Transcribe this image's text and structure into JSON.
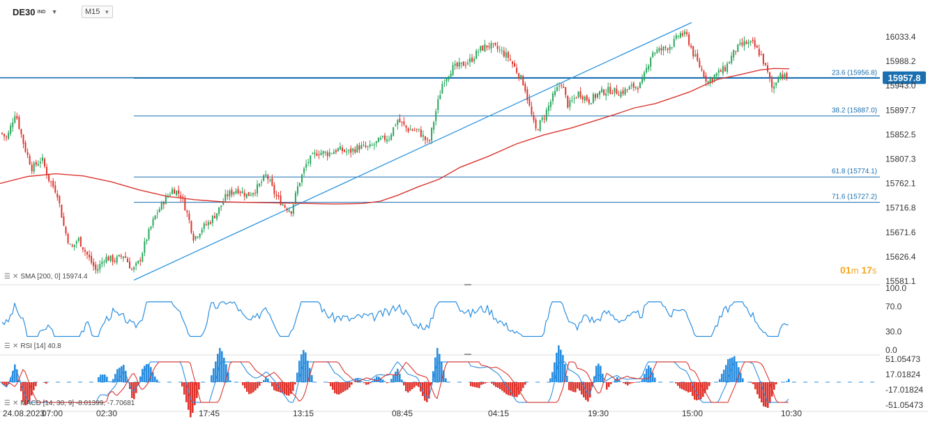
{
  "header": {
    "symbol": "DE30",
    "symbol_tag": "IND",
    "timeframe": "M15"
  },
  "current_price": "15957.8",
  "timer": {
    "minutes": "01",
    "min_unit": "m",
    "seconds": "17",
    "sec_unit": "s"
  },
  "indicators": {
    "sma": "SMA [200, 0] 15974.4",
    "rsi": "RSI [14] 40.8",
    "macd": "MACD [14, 30, 9] -8.01399, -7.70681"
  },
  "colors": {
    "up": "#26a65b",
    "down": "#e0332b",
    "sma": "#d9352f",
    "fib": "#1a6fb0",
    "trend": "#2a93e0",
    "rsi": "#2a8ee0",
    "macd_pos": "#2a8ee0",
    "macd_neg": "#e0332b"
  },
  "chart_data": {
    "type": "candlestick",
    "title": "DE30",
    "price_axis": {
      "ticks": [
        16033.4,
        15988.2,
        15943.0,
        15897.7,
        15852.5,
        15807.3,
        15762.1,
        15716.8,
        15671.6,
        15626.4,
        15581.1
      ]
    },
    "time_axis": {
      "ticks": [
        "24.08.2023",
        "07:00",
        "02:30",
        "17:45",
        "13:15",
        "08:45",
        "04:15",
        "19:30",
        "15:00",
        "10:30"
      ]
    },
    "fib_levels": [
      {
        "label": "23.6 (15956.8)",
        "value": 15956.8
      },
      {
        "label": "38.2 (15887.0)",
        "value": 15887.0
      },
      {
        "label": "61.8 (15774.1)",
        "value": 15774.1
      },
      {
        "label": "71.6 (15727.2)",
        "value": 15727.2
      }
    ],
    "close_path": [
      [
        0,
        15858
      ],
      [
        10,
        15845
      ],
      [
        22,
        15895
      ],
      [
        35,
        15830
      ],
      [
        46,
        15790
      ],
      [
        60,
        15808
      ],
      [
        70,
        15770
      ],
      [
        82,
        15745
      ],
      [
        92,
        15680
      ],
      [
        102,
        15640
      ],
      [
        112,
        15660
      ],
      [
        125,
        15630
      ],
      [
        138,
        15600
      ],
      [
        150,
        15625
      ],
      [
        165,
        15620
      ],
      [
        178,
        15630
      ],
      [
        190,
        15600
      ],
      [
        200,
        15618
      ],
      [
        210,
        15660
      ],
      [
        222,
        15700
      ],
      [
        235,
        15730
      ],
      [
        248,
        15752
      ],
      [
        260,
        15740
      ],
      [
        270,
        15700
      ],
      [
        278,
        15660
      ],
      [
        290,
        15680
      ],
      [
        300,
        15690
      ],
      [
        312,
        15710
      ],
      [
        325,
        15740
      ],
      [
        340,
        15752
      ],
      [
        355,
        15740
      ],
      [
        370,
        15755
      ],
      [
        382,
        15778
      ],
      [
        395,
        15740
      ],
      [
        408,
        15720
      ],
      [
        418,
        15712
      ],
      [
        428,
        15760
      ],
      [
        440,
        15800
      ],
      [
        455,
        15820
      ],
      [
        470,
        15818
      ],
      [
        485,
        15825
      ],
      [
        500,
        15820
      ],
      [
        515,
        15830
      ],
      [
        530,
        15828
      ],
      [
        545,
        15842
      ],
      [
        558,
        15848
      ],
      [
        570,
        15880
      ],
      [
        585,
        15862
      ],
      [
        600,
        15860
      ],
      [
        615,
        15835
      ],
      [
        625,
        15895
      ],
      [
        635,
        15950
      ],
      [
        648,
        15975
      ],
      [
        660,
        15980
      ],
      [
        675,
        15990
      ],
      [
        688,
        16010
      ],
      [
        700,
        16018
      ],
      [
        715,
        16010
      ],
      [
        730,
        15995
      ],
      [
        742,
        15968
      ],
      [
        752,
        15945
      ],
      [
        760,
        15900
      ],
      [
        768,
        15860
      ],
      [
        780,
        15885
      ],
      [
        792,
        15920
      ],
      [
        805,
        15950
      ],
      [
        815,
        15905
      ],
      [
        830,
        15930
      ],
      [
        845,
        15915
      ],
      [
        860,
        15930
      ],
      [
        875,
        15935
      ],
      [
        890,
        15930
      ],
      [
        905,
        15940
      ],
      [
        920,
        15945
      ],
      [
        935,
        16005
      ],
      [
        950,
        16010
      ],
      [
        965,
        16020
      ],
      [
        975,
        16040
      ],
      [
        985,
        16035
      ],
      [
        995,
        16000
      ],
      [
        1005,
        15975
      ],
      [
        1015,
        15950
      ],
      [
        1025,
        15962
      ],
      [
        1040,
        15975
      ],
      [
        1055,
        16010
      ],
      [
        1068,
        16022
      ],
      [
        1080,
        16020
      ],
      [
        1092,
        15998
      ],
      [
        1100,
        15970
      ],
      [
        1108,
        15935
      ],
      [
        1118,
        15968
      ],
      [
        1126,
        15958
      ],
      [
        1132,
        15957.8
      ]
    ],
    "sma_200": [
      [
        0,
        15762
      ],
      [
        40,
        15775
      ],
      [
        80,
        15780
      ],
      [
        120,
        15776
      ],
      [
        160,
        15765
      ],
      [
        200,
        15750
      ],
      [
        240,
        15738
      ],
      [
        280,
        15732
      ],
      [
        320,
        15728
      ],
      [
        360,
        15727
      ],
      [
        400,
        15726
      ],
      [
        440,
        15725
      ],
      [
        480,
        15724
      ],
      [
        520,
        15725
      ],
      [
        545,
        15729
      ],
      [
        570,
        15740
      ],
      [
        600,
        15756
      ],
      [
        630,
        15770
      ],
      [
        660,
        15792
      ],
      [
        700,
        15812
      ],
      [
        740,
        15835
      ],
      [
        780,
        15852
      ],
      [
        820,
        15865
      ],
      [
        850,
        15877
      ],
      [
        880,
        15889
      ],
      [
        910,
        15902
      ],
      [
        940,
        15910
      ],
      [
        970,
        15923
      ],
      [
        990,
        15932
      ],
      [
        1010,
        15944
      ],
      [
        1030,
        15955
      ],
      [
        1060,
        15963
      ],
      [
        1090,
        15972
      ],
      [
        1110,
        15975
      ],
      [
        1132,
        15974.4
      ]
    ],
    "rsi": {
      "levels": [
        100.0,
        70.0,
        30.0,
        0.0
      ],
      "last": 40.8
    },
    "macd": {
      "levels": [
        51.05473,
        17.01824,
        -17.01824,
        -51.05473
      ],
      "values": [
        -8.01399,
        -7.70681
      ]
    }
  }
}
